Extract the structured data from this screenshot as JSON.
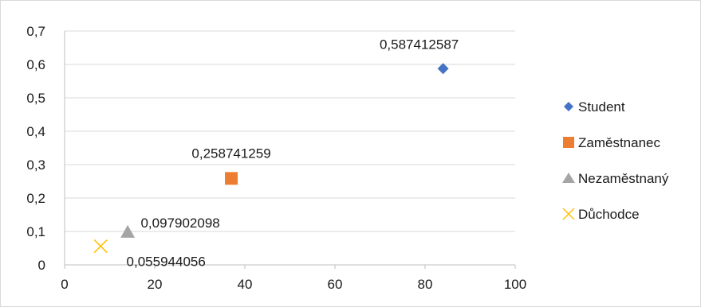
{
  "chart_data": {
    "type": "scatter",
    "title": "",
    "xlabel": "",
    "ylabel": "",
    "xlim": [
      0,
      100
    ],
    "ylim": [
      0,
      0.7
    ],
    "x_ticks": [
      0,
      20,
      40,
      60,
      80,
      100
    ],
    "y_ticks": [
      0,
      0.1,
      0.2,
      0.3,
      0.4,
      0.5,
      0.6,
      0.7
    ],
    "x_tick_labels": [
      "0",
      "20",
      "40",
      "60",
      "80",
      "100"
    ],
    "y_tick_labels": [
      "0",
      "0,1",
      "0,2",
      "0,3",
      "0,4",
      "0,5",
      "0,6",
      "0,7"
    ],
    "grid": "horizontal",
    "legend_position": "right",
    "series": [
      {
        "name": "Student",
        "marker": "diamond",
        "color": "#4472C4",
        "points": [
          {
            "x": 84,
            "y": 0.587412587,
            "label": "0,587412587"
          }
        ]
      },
      {
        "name": "Zaměstnanec",
        "marker": "square",
        "color": "#ED7D31",
        "points": [
          {
            "x": 37,
            "y": 0.258741259,
            "label": "0,258741259"
          }
        ]
      },
      {
        "name": "Nezaměstnaný",
        "marker": "triangle",
        "color": "#A5A5A5",
        "points": [
          {
            "x": 14,
            "y": 0.097902098,
            "label": "0,097902098"
          }
        ]
      },
      {
        "name": "Důchodce",
        "marker": "x",
        "color": "#FFC000",
        "points": [
          {
            "x": 8,
            "y": 0.055944056,
            "label": "0,055944056"
          }
        ]
      }
    ]
  }
}
